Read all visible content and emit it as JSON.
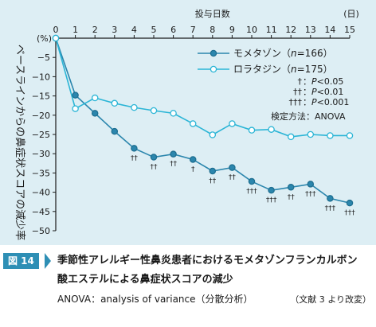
{
  "chart_data": {
    "type": "line",
    "xlabel": "投与日数",
    "x_unit": "(日)",
    "y_unit": "(%)",
    "ylabel": "ベースラインからの鼻症状スコアの減少率",
    "x": [
      0,
      1,
      2,
      3,
      4,
      5,
      6,
      7,
      8,
      9,
      10,
      11,
      12,
      13,
      14,
      15
    ],
    "xlim": [
      0,
      15
    ],
    "ylim": [
      -50,
      0
    ],
    "yticks": [
      0,
      -5,
      -10,
      -15,
      -20,
      -25,
      -30,
      -35,
      -40,
      -45,
      -50
    ],
    "y_tick_labels": [
      "0",
      "−5",
      "−10",
      "−15",
      "−20",
      "−25",
      "−30",
      "−35",
      "−40",
      "−45",
      "−50"
    ],
    "grid": false,
    "legend_position": "top-right",
    "series": [
      {
        "name": "モメタゾン（n=166）",
        "name_prefix": "モメタゾン（",
        "name_n": "n",
        "name_suffix": "=166）",
        "marker": "filled",
        "color": "#2b86ad",
        "values": [
          0,
          -14.8,
          -19.5,
          -24.2,
          -28.6,
          -30.9,
          -30.1,
          -31.5,
          -34.5,
          -33.6,
          -37.2,
          -39.5,
          -38.7,
          -37.9,
          -41.6,
          -42.8
        ],
        "significance": [
          "",
          "",
          "",
          "",
          "††",
          "††",
          "††",
          "†",
          "††",
          "††",
          "†††",
          "†††",
          "††",
          "†††",
          "†††",
          "†††"
        ]
      },
      {
        "name": "ロラタジン（n=175）",
        "name_prefix": "ロラタジン（",
        "name_n": "n",
        "name_suffix": "=175）",
        "marker": "open",
        "color": "#2bb5d6",
        "values": [
          0,
          -18.3,
          -15.5,
          -16.9,
          -18.0,
          -18.8,
          -19.5,
          -22.2,
          -25.1,
          -22.2,
          -23.9,
          -23.7,
          -25.6,
          -25.0,
          -25.3,
          -25.3
        ]
      }
    ],
    "significance_notes": [
      {
        "mark": "†",
        "text": "：P<0.05"
      },
      {
        "mark": "††",
        "text": "：P<0.01"
      },
      {
        "mark": "†††",
        "text": "：P<0.001"
      }
    ],
    "test_method": "検定方法：ANOVA"
  },
  "caption": {
    "figure_label": "図 14",
    "title_line1": "季節性アレルギー性鼻炎患者におけるモメタゾンフランカルボン",
    "title_line2": "酸エステルによる鼻症状スコアの減少",
    "note": "ANOVA：analysis of variance（分散分析）",
    "source": "（文献 3 より改変）"
  }
}
